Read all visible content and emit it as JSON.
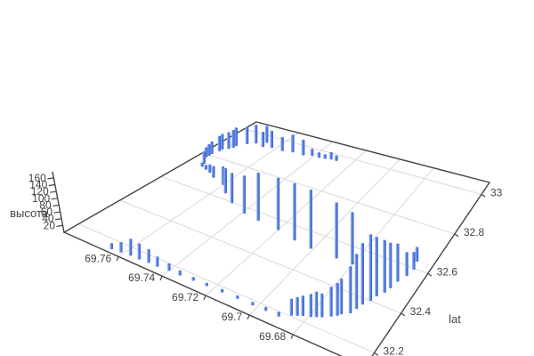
{
  "scene": {
    "background": "#ffffff",
    "axis_color": "#444444",
    "grid_color": "#d9d9d9",
    "bar_color_light": "#b3c8f2",
    "bar_color_mid": "#5580e6",
    "bar_color_dark": "#3a5fc4",
    "z_axis": {
      "title": "высота",
      "tick_labels": [
        "20",
        "40",
        "60",
        "80",
        "100",
        "120",
        "140",
        "160"
      ],
      "tick_values": [
        20,
        40,
        60,
        80,
        100,
        120,
        140,
        160
      ],
      "range": [
        0,
        178
      ]
    },
    "lon_axis": {
      "title": "",
      "tick_labels": [
        "69.76",
        "69.74",
        "69.72",
        "69.7",
        "69.68"
      ],
      "tick_values": [
        69.76,
        69.74,
        69.72,
        69.7,
        69.68
      ],
      "range": [
        69.647,
        69.785
      ]
    },
    "lat_axis": {
      "title": "lat",
      "tick_labels": [
        "32.2",
        "32.4",
        "32.6",
        "32.8",
        "33"
      ],
      "tick_values": [
        32.2,
        32.4,
        32.6,
        32.8,
        33
      ],
      "range": [
        32.13,
        33.06
      ]
    }
  },
  "chart_data": {
    "type": "bar",
    "subtype": "3d-vertical-bars",
    "title": "",
    "xlabel": "",
    "ylabel": "lat",
    "zlabel": "высота",
    "x_range": [
      69.647,
      69.785
    ],
    "y_range": [
      32.13,
      33.06
    ],
    "z_range": [
      0,
      178
    ],
    "grid": true,
    "legend": false,
    "points_format": [
      "lon",
      "lat",
      "height"
    ],
    "points": [
      [
        69.765,
        32.149,
        18
      ],
      [
        69.761,
        32.153,
        30
      ],
      [
        69.757,
        32.158,
        48
      ],
      [
        69.753,
        32.158,
        45
      ],
      [
        69.749,
        32.162,
        38
      ],
      [
        69.745,
        32.162,
        28
      ],
      [
        69.74,
        32.167,
        20
      ],
      [
        69.735,
        32.167,
        14
      ],
      [
        69.729,
        32.17,
        10
      ],
      [
        69.723,
        32.172,
        9
      ],
      [
        69.716,
        32.174,
        9
      ],
      [
        69.709,
        32.175,
        9
      ],
      [
        69.702,
        32.176,
        9
      ],
      [
        69.696,
        32.177,
        10
      ],
      [
        69.69,
        32.177,
        12
      ],
      [
        69.686,
        32.204,
        41
      ],
      [
        69.684,
        32.214,
        45
      ],
      [
        69.682,
        32.223,
        49
      ],
      [
        69.679,
        32.233,
        55
      ],
      [
        69.677,
        32.242,
        61
      ],
      [
        69.675,
        32.251,
        57
      ],
      [
        69.672,
        32.27,
        71
      ],
      [
        69.67,
        32.284,
        78
      ],
      [
        69.669,
        32.297,
        85
      ],
      [
        69.666,
        32.316,
        112
      ],
      [
        69.665,
        32.344,
        132
      ],
      [
        69.664,
        32.372,
        148
      ],
      [
        69.662,
        32.4,
        161
      ],
      [
        69.661,
        32.428,
        145
      ],
      [
        69.659,
        32.456,
        129
      ],
      [
        69.658,
        32.483,
        112
      ],
      [
        69.657,
        32.521,
        95
      ],
      [
        69.655,
        32.558,
        60
      ],
      [
        69.654,
        32.595,
        45
      ],
      [
        69.655,
        32.632,
        38
      ],
      [
        69.68,
        32.521,
        137
      ],
      [
        69.688,
        32.521,
        149
      ],
      [
        69.701,
        32.521,
        162
      ],
      [
        69.71,
        32.53,
        161
      ],
      [
        69.72,
        32.549,
        151
      ],
      [
        69.731,
        32.558,
        143
      ],
      [
        69.739,
        32.567,
        116
      ],
      [
        69.748,
        32.595,
        95
      ],
      [
        69.755,
        32.632,
        81
      ],
      [
        69.76,
        32.669,
        61
      ],
      [
        69.767,
        32.688,
        40
      ],
      [
        69.771,
        32.707,
        29
      ],
      [
        69.774,
        32.716,
        17
      ],
      [
        69.777,
        32.725,
        15
      ],
      [
        69.778,
        32.744,
        23
      ],
      [
        69.78,
        32.762,
        30
      ],
      [
        69.781,
        32.781,
        37
      ],
      [
        69.781,
        32.795,
        42
      ],
      [
        69.781,
        32.809,
        46
      ],
      [
        69.78,
        32.837,
        56
      ],
      [
        69.78,
        32.851,
        58
      ],
      [
        69.778,
        32.865,
        62
      ],
      [
        69.777,
        32.879,
        66
      ],
      [
        69.777,
        32.893,
        69
      ],
      [
        69.774,
        32.921,
        63
      ],
      [
        69.771,
        32.939,
        69
      ],
      [
        69.767,
        32.958,
        63
      ],
      [
        69.766,
        32.93,
        56
      ],
      [
        69.762,
        32.939,
        63
      ],
      [
        69.756,
        32.939,
        50
      ],
      [
        69.751,
        32.948,
        63
      ],
      [
        69.745,
        32.948,
        55
      ],
      [
        69.741,
        32.958,
        25
      ],
      [
        69.737,
        32.958,
        19
      ],
      [
        69.734,
        32.962,
        16
      ],
      [
        69.731,
        32.967,
        25
      ],
      [
        69.728,
        32.967,
        19
      ]
    ]
  }
}
